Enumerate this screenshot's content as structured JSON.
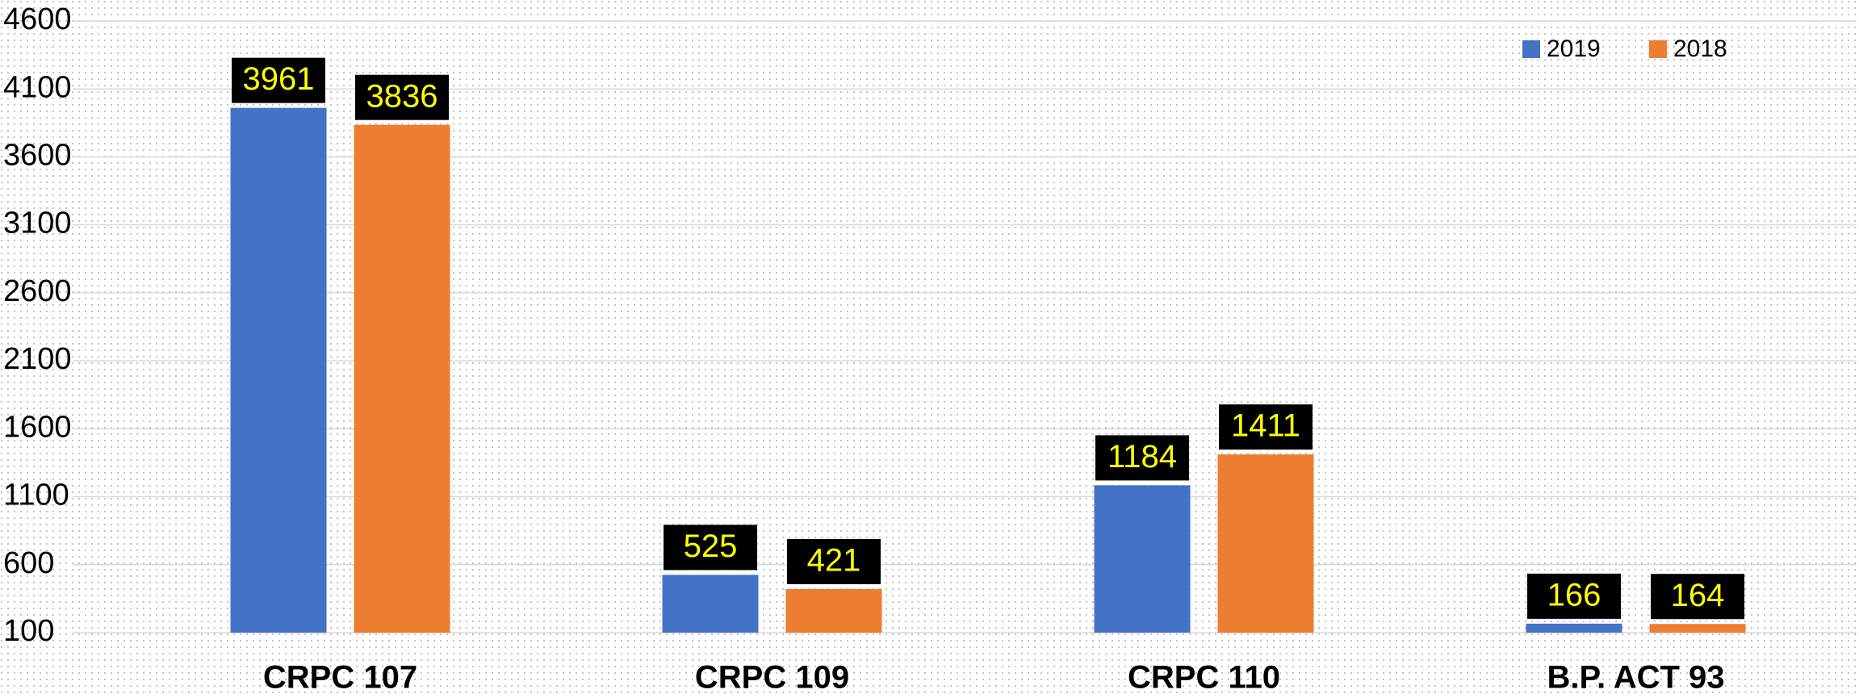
{
  "chart_data": {
    "type": "bar",
    "categories": [
      "CRPC 107",
      "CRPC 109",
      "CRPC 110",
      "B.P. ACT 93"
    ],
    "series": [
      {
        "name": "2019",
        "color": "#4472c4",
        "values": [
          3961,
          525,
          1184,
          166
        ]
      },
      {
        "name": "2018",
        "color": "#ed7d31",
        "values": [
          3836,
          421,
          1411,
          164
        ]
      }
    ],
    "ylim": [
      100,
      4600
    ],
    "yticks": [
      100,
      600,
      1100,
      1600,
      2100,
      2600,
      3100,
      3600,
      4100,
      4600
    ],
    "grid": true,
    "legend": "top-right",
    "data_labels": true
  }
}
